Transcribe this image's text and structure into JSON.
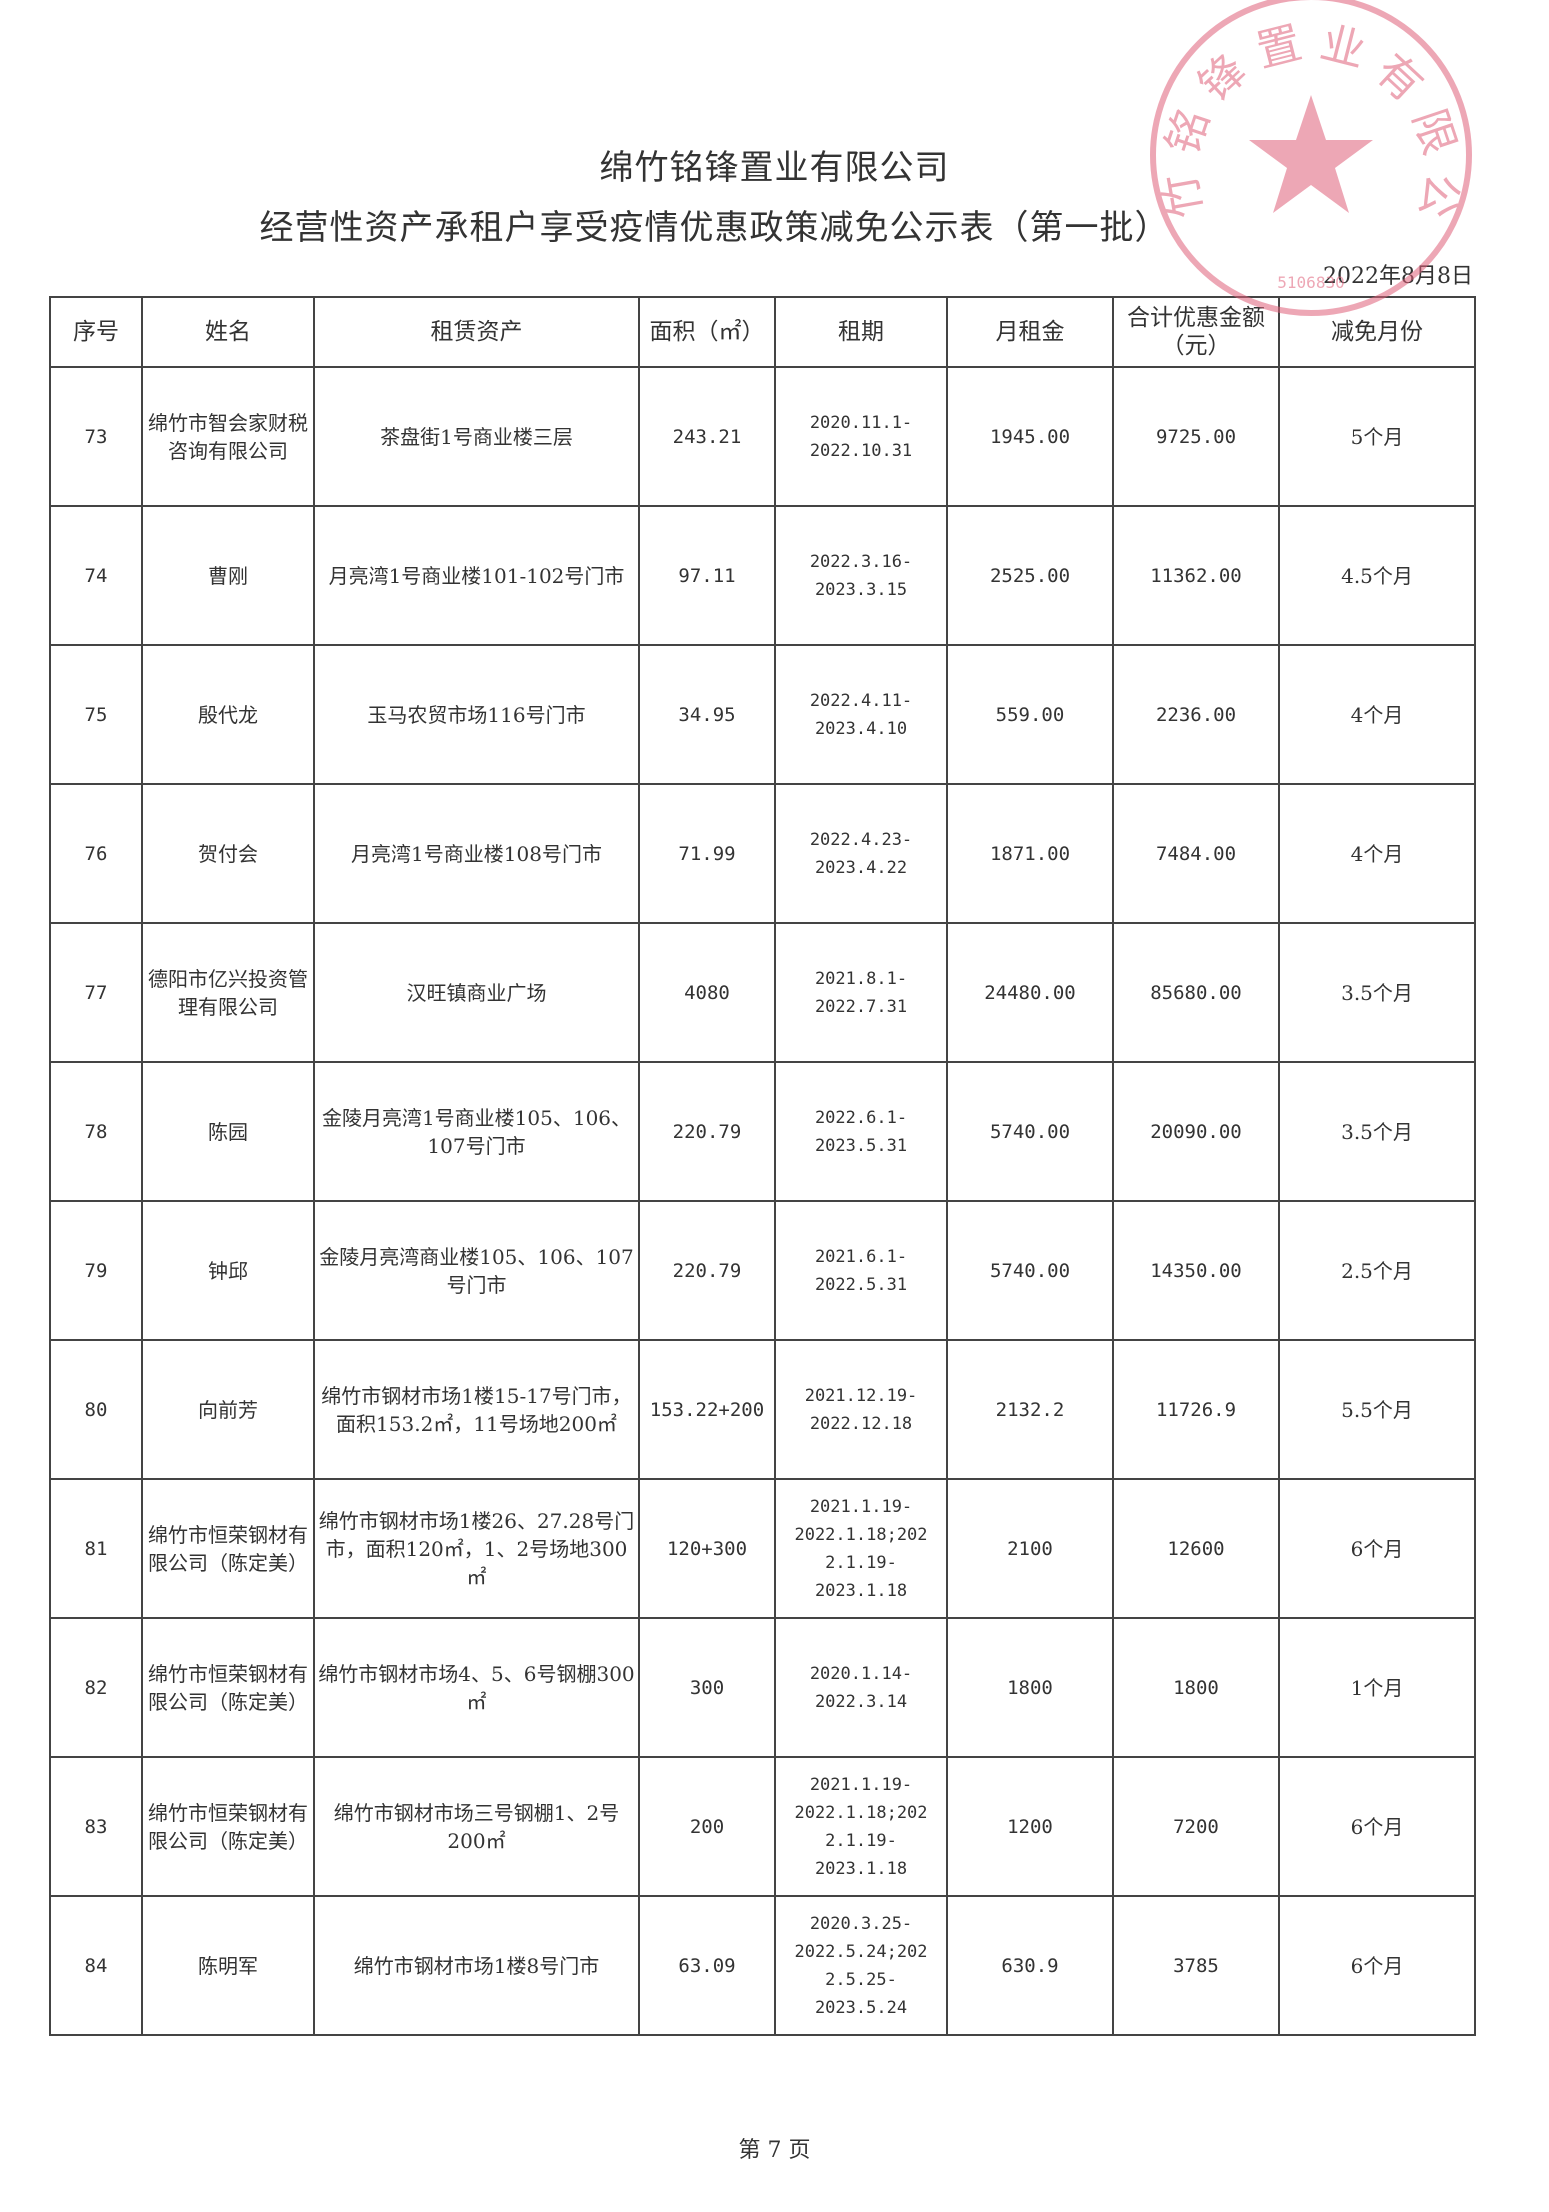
{
  "header": {
    "company": "绵竹铭锋置业有限公司",
    "title": "经营性资产承租户享受疫情优惠政策减免公示表（第一批）",
    "date": "2022年8月8日"
  },
  "table": {
    "columns": [
      "序号",
      "姓名",
      "租赁资产",
      "面积（㎡）",
      "租期",
      "月租金",
      "合计优惠金额（元）",
      "减免月份"
    ],
    "rows": [
      [
        "73",
        "绵竹市智会家财税咨询有限公司",
        "茶盘街1号商业楼三层",
        "243.21",
        "2020.11.1-2022.10.31",
        "1945.00",
        "9725.00",
        "5个月"
      ],
      [
        "74",
        "曹刚",
        "月亮湾1号商业楼101-102号门市",
        "97.11",
        "2022.3.16-2023.3.15",
        "2525.00",
        "11362.00",
        "4.5个月"
      ],
      [
        "75",
        "殷代龙",
        "玉马农贸市场116号门市",
        "34.95",
        "2022.4.11-2023.4.10",
        "559.00",
        "2236.00",
        "4个月"
      ],
      [
        "76",
        "贺付会",
        "月亮湾1号商业楼108号门市",
        "71.99",
        "2022.4.23-2023.4.22",
        "1871.00",
        "7484.00",
        "4个月"
      ],
      [
        "77",
        "德阳市亿兴投资管理有限公司",
        "汉旺镇商业广场",
        "4080",
        "2021.8.1-2022.7.31",
        "24480.00",
        "85680.00",
        "3.5个月"
      ],
      [
        "78",
        "陈园",
        "金陵月亮湾1号商业楼105、106、107号门市",
        "220.79",
        "2022.6.1-2023.5.31",
        "5740.00",
        "20090.00",
        "3.5个月"
      ],
      [
        "79",
        "钟邱",
        "金陵月亮湾商业楼105、106、107号门市",
        "220.79",
        "2021.6.1-2022.5.31",
        "5740.00",
        "14350.00",
        "2.5个月"
      ],
      [
        "80",
        "向前芳",
        "绵竹市钢材市场1楼15-17号门市，面积153.2㎡，11号场地200㎡",
        "153.22+200",
        "2021.12.19-2022.12.18",
        "2132.2",
        "11726.9",
        "5.5个月"
      ],
      [
        "81",
        "绵竹市恒荣钢材有限公司（陈定美）",
        "绵竹市钢材市场1楼26、27.28号门市，面积120㎡，1、2号场地300㎡",
        "120+300",
        "2021.1.19-2022.1.18;2022.1.19-2023.1.18",
        "2100",
        "12600",
        "6个月"
      ],
      [
        "82",
        "绵竹市恒荣钢材有限公司（陈定美）",
        "绵竹市钢材市场4、5、6号钢棚300㎡",
        "300",
        "2020.1.14-2022.3.14",
        "1800",
        "1800",
        "1个月"
      ],
      [
        "83",
        "绵竹市恒荣钢材有限公司（陈定美）",
        "绵竹市钢材市场三号钢棚1、2号200㎡",
        "200",
        "2021.1.19-2022.1.18;2022.1.19-2023.1.18",
        "1200",
        "7200",
        "6个月"
      ],
      [
        "84",
        "陈明军",
        "绵竹市钢材市场1楼8号门市",
        "63.09",
        "2020.3.25-2022.5.24;2022.5.25-2023.5.24",
        "630.9",
        "3785",
        "6个月"
      ]
    ]
  },
  "footer": {
    "page": "第 7 页"
  },
  "stamp": {
    "text": "绵竹铭锋置业有限公司",
    "code": "5106830",
    "color": "#e0607a",
    "icon": "star-icon"
  }
}
